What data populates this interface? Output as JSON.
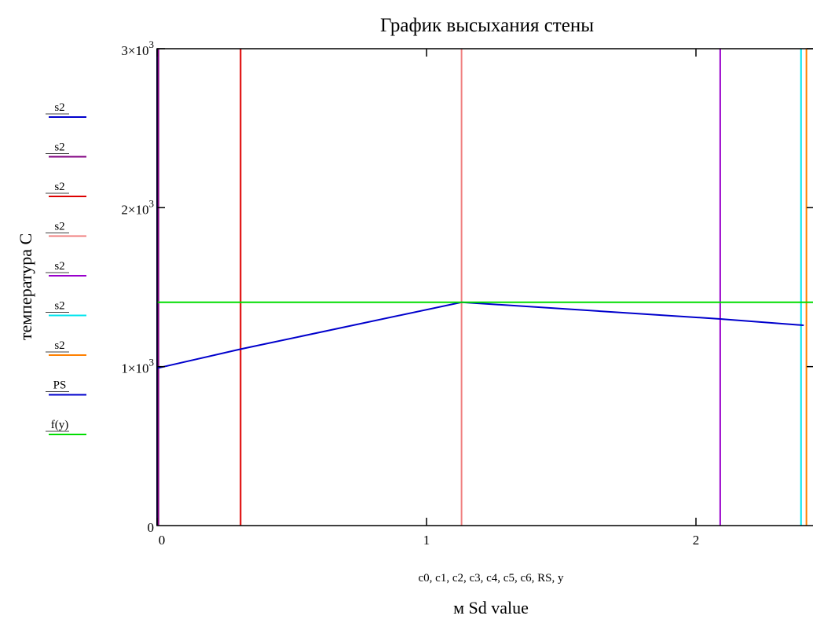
{
  "chart_data": {
    "type": "line",
    "title": "График высыхания стены",
    "ylabel": "температура C",
    "xlabel": "м Sd value",
    "x_variables": "c0, c1, c2, c3, c4, c5, c6, RS, y",
    "xlim": [
      0,
      2.4
    ],
    "ylim": [
      0,
      3000
    ],
    "x_ticks": [
      {
        "value": 0,
        "label": "0"
      },
      {
        "value": 1,
        "label": "1"
      },
      {
        "value": 2,
        "label": "2"
      }
    ],
    "y_ticks": [
      {
        "value": 0,
        "base": "0",
        "exp": ""
      },
      {
        "value": 1000,
        "base": "1×10",
        "exp": "3"
      },
      {
        "value": 2000,
        "base": "2×10",
        "exp": "3"
      },
      {
        "value": 3000,
        "base": "3×10",
        "exp": "3"
      }
    ],
    "grid": false,
    "legend_position": "left",
    "series": [
      {
        "name": "s2",
        "color": "#0000cc",
        "kind": "vline",
        "x": 0.0
      },
      {
        "name": "s2",
        "color": "#800080",
        "kind": "vline",
        "x": 0.005
      },
      {
        "name": "s2",
        "color": "#dd0000",
        "kind": "vline",
        "x": 0.31
      },
      {
        "name": "s2",
        "color": "#f08080",
        "kind": "vline",
        "x": 1.13
      },
      {
        "name": "s2",
        "color": "#9900cc",
        "kind": "vline",
        "x": 2.09
      },
      {
        "name": "s2",
        "color": "#00e5ee",
        "kind": "vline",
        "x": 2.39
      },
      {
        "name": "s2",
        "color": "#ff8000",
        "kind": "vline",
        "x": 2.41
      },
      {
        "name": "PS",
        "color": "#0000cc",
        "kind": "line",
        "x": [
          0,
          0.31,
          1.13,
          2.09,
          2.4
        ],
        "y": [
          990,
          1110,
          1405,
          1300,
          1260
        ]
      },
      {
        "name": "f(y)",
        "color": "#00dd00",
        "kind": "hline",
        "y": 1405
      }
    ]
  }
}
